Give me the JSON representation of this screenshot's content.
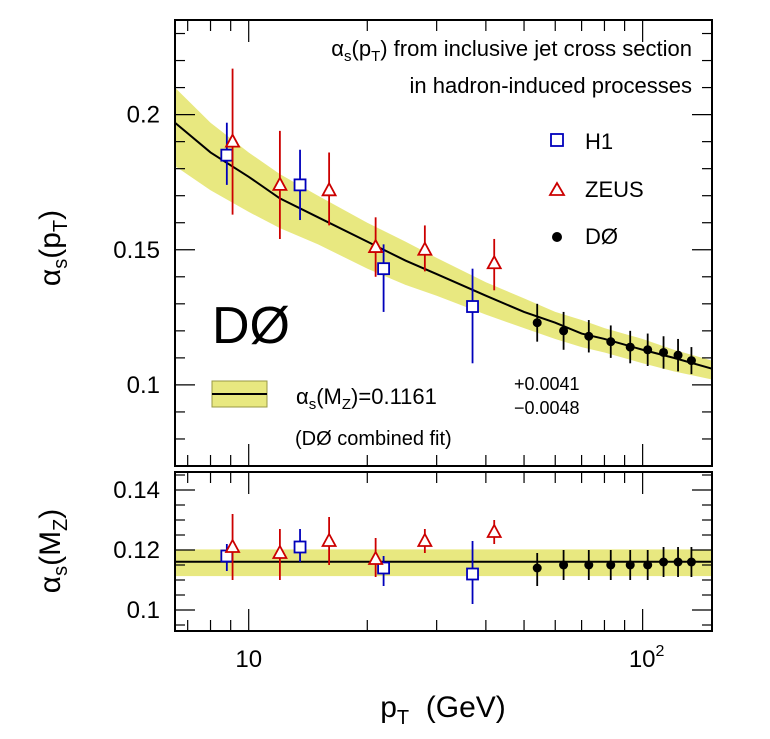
{
  "chart_data": [
    {
      "type": "scatter",
      "panel": "top",
      "x_scale": "log",
      "xlim": [
        6.5,
        150
      ],
      "ylim": [
        0.07,
        0.235
      ],
      "yticks": [
        "0.1",
        "0.15",
        "0.2"
      ],
      "ylabel": {
        "main": "α",
        "sub1": "s",
        "mid": "(p",
        "sub2": "T",
        "end": ")"
      },
      "title_lines": {
        "line1_a": "α",
        "line1_sub1": "s",
        "line1_b": "(p",
        "line1_sub2": "T",
        "line1_c": ") from inclusive jet cross section",
        "line2": "in hadron-induced processes"
      },
      "experiment_label": "DØ",
      "legend": {
        "h1": "H1",
        "zeus": "ZEUS",
        "d0": "DØ",
        "fit_a": "α",
        "fit_sub1": "s",
        "fit_b": "(M",
        "fit_sub2": "Z",
        "fit_c": ")=0.1161",
        "fit_plus": "+0.0041",
        "fit_minus": "−0.0048",
        "fit_note": "(DØ combined fit)"
      },
      "band": {
        "x": [
          6.5,
          8,
          10,
          12,
          15,
          20,
          25,
          30,
          40,
          50,
          60,
          70,
          80,
          100,
          120,
          150
        ],
        "center": [
          0.197,
          0.186,
          0.177,
          0.169,
          0.162,
          0.153,
          0.146,
          0.141,
          0.133,
          0.127,
          0.123,
          0.119,
          0.117,
          0.113,
          0.11,
          0.106
        ],
        "upper": [
          0.21,
          0.197,
          0.186,
          0.178,
          0.17,
          0.16,
          0.153,
          0.147,
          0.138,
          0.132,
          0.127,
          0.124,
          0.121,
          0.117,
          0.113,
          0.109
        ],
        "lower": [
          0.181,
          0.172,
          0.164,
          0.158,
          0.152,
          0.143,
          0.137,
          0.133,
          0.126,
          0.121,
          0.117,
          0.114,
          0.112,
          0.108,
          0.105,
          0.102
        ]
      },
      "series": [
        {
          "name": "H1",
          "marker": "square-open",
          "color": "#0000bb",
          "x": [
            8.8,
            13.5,
            22,
            37
          ],
          "y": [
            0.185,
            0.174,
            0.143,
            0.129
          ],
          "yerr_up": [
            0.012,
            0.013,
            0.009,
            0.014
          ],
          "yerr_down": [
            0.011,
            0.013,
            0.016,
            0.021
          ]
        },
        {
          "name": "ZEUS",
          "marker": "triangle-open",
          "color": "#cc0000",
          "x": [
            9.1,
            12,
            16,
            21,
            28,
            42
          ],
          "y": [
            0.19,
            0.174,
            0.172,
            0.151,
            0.15,
            0.145
          ],
          "yerr_up": [
            0.027,
            0.02,
            0.014,
            0.011,
            0.009,
            0.009
          ],
          "yerr_down": [
            0.027,
            0.02,
            0.013,
            0.011,
            0.008,
            0.01
          ]
        },
        {
          "name": "DØ",
          "marker": "circle-filled",
          "color": "#000000",
          "x": [
            54,
            63,
            73,
            83,
            93,
            103,
            113,
            123,
            133
          ],
          "y": [
            0.123,
            0.12,
            0.118,
            0.116,
            0.114,
            0.113,
            0.112,
            0.111,
            0.109
          ],
          "yerr_up": [
            0.007,
            0.007,
            0.006,
            0.006,
            0.006,
            0.006,
            0.006,
            0.006,
            0.005
          ],
          "yerr_down": [
            0.007,
            0.007,
            0.006,
            0.006,
            0.006,
            0.006,
            0.006,
            0.006,
            0.005
          ]
        }
      ],
      "band_color": "#e8e880",
      "line_color": "#000000"
    },
    {
      "type": "scatter",
      "panel": "bottom",
      "x_scale": "log",
      "xlim": [
        6.5,
        150
      ],
      "ylim": [
        0.093,
        0.146
      ],
      "yticks": [
        "0.1",
        "0.12",
        "0.14"
      ],
      "xticks": [
        "10",
        "10"
      ],
      "xtick_sup": "2",
      "ylabel": {
        "main": "α",
        "sub1": "s",
        "mid": "(M",
        "sub2": "Z",
        "end": ")"
      },
      "xlabel": {
        "main": "p",
        "sub": "T",
        "rest": "  (GeV)"
      },
      "fit_value": 0.1161,
      "fit_up": 0.1202,
      "fit_down": 0.1113,
      "series": [
        {
          "name": "H1",
          "marker": "square-open",
          "color": "#0000bb",
          "x": [
            8.8,
            13.5,
            22,
            37
          ],
          "y": [
            0.118,
            0.121,
            0.114,
            0.112
          ],
          "yerr_up": [
            0.004,
            0.006,
            0.004,
            0.011
          ],
          "yerr_down": [
            0.005,
            0.005,
            0.006,
            0.01
          ]
        },
        {
          "name": "ZEUS",
          "marker": "triangle-open",
          "color": "#cc0000",
          "x": [
            9.1,
            12,
            16,
            21,
            28,
            42
          ],
          "y": [
            0.121,
            0.119,
            0.123,
            0.117,
            0.123,
            0.126
          ],
          "yerr_up": [
            0.011,
            0.008,
            0.008,
            0.007,
            0.004,
            0.004
          ],
          "yerr_down": [
            0.011,
            0.009,
            0.008,
            0.006,
            0.004,
            0.004
          ]
        },
        {
          "name": "DØ",
          "marker": "circle-filled",
          "color": "#000000",
          "x": [
            54,
            63,
            73,
            83,
            93,
            103,
            113,
            123,
            133
          ],
          "y": [
            0.114,
            0.115,
            0.115,
            0.115,
            0.115,
            0.115,
            0.116,
            0.116,
            0.116
          ],
          "yerr_up": [
            0.005,
            0.005,
            0.005,
            0.005,
            0.005,
            0.005,
            0.005,
            0.005,
            0.005
          ],
          "yerr_down": [
            0.006,
            0.005,
            0.005,
            0.005,
            0.005,
            0.005,
            0.005,
            0.005,
            0.005
          ]
        }
      ],
      "band_color": "#e8e880",
      "line_color": "#000000"
    }
  ]
}
